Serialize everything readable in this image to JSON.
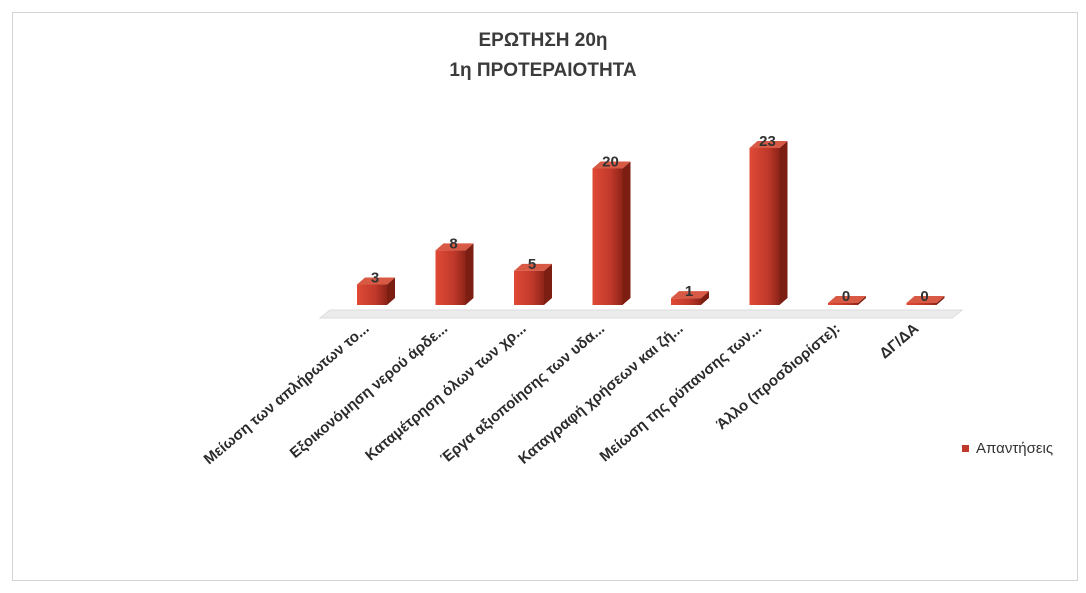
{
  "chart_data": {
    "type": "bar",
    "title": "ΕΡΩΤΗΣΗ 20η",
    "subtitle": "1η ΠΡΟΤΕΡΑΙΟΤΗΤΑ",
    "categories": [
      "Μείωση των απλήρωτων το...",
      "Εξοικονόμηση νερού άρδε...",
      "Καταμέτρηση όλων των χρ...",
      "Έργα αξιοποίησης των υδα...",
      "Καταγραφή χρήσεων και ζή...",
      "Μείωση της ρύπανσης των...",
      "Άλλο (προσδιορίστε):",
      "ΔΓ/ΔΑ"
    ],
    "series": [
      {
        "name": "Απαντήσεις",
        "values": [
          3,
          8,
          5,
          20,
          1,
          23,
          0,
          0
        ]
      }
    ],
    "data_labels": [
      "3",
      "8",
      "5",
      "20",
      "1",
      "23",
      "0",
      "0"
    ],
    "ylim": [
      0,
      23
    ],
    "bar_color": "#c0392b",
    "legend_position": "right"
  }
}
